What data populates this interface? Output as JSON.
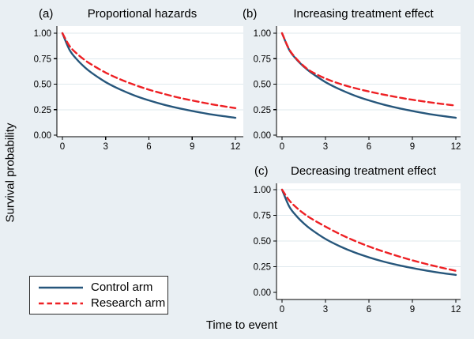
{
  "figure": {
    "ylabel": "Survival probability",
    "xlabel": "Time to event",
    "legend": [
      {
        "name": "Control arm",
        "style": "solid"
      },
      {
        "name": "Research arm",
        "style": "dashed"
      }
    ]
  },
  "colors": {
    "background": "#e9eff3",
    "plot_background": "#ffffff",
    "gridline": "#dfe9ee",
    "axis": "#000000",
    "control_arm": "#26567b",
    "research_arm": "#ee2024"
  },
  "chart_data": [
    {
      "id": "a",
      "type": "line",
      "panel_label": "(a)",
      "title": "Proportional hazards",
      "xlim": [
        0,
        12
      ],
      "ylim": [
        0,
        1
      ],
      "xticks": [
        "0",
        "3",
        "6",
        "9",
        "12"
      ],
      "yticks": [
        "0.00",
        "0.25",
        "0.50",
        "0.75",
        "1.00"
      ],
      "grid": "horizontal",
      "x": [
        0,
        0.5,
        1,
        1.5,
        2,
        3,
        4,
        5,
        6,
        7,
        8,
        9,
        10,
        11,
        12
      ],
      "series": [
        {
          "name": "Control arm",
          "values": [
            1.0,
            0.835,
            0.743,
            0.672,
            0.614,
            0.52,
            0.448,
            0.389,
            0.341,
            0.3,
            0.266,
            0.237,
            0.211,
            0.189,
            0.17
          ]
        },
        {
          "name": "Research arm",
          "values": [
            1.0,
            0.873,
            0.8,
            0.742,
            0.694,
            0.613,
            0.548,
            0.493,
            0.446,
            0.406,
            0.37,
            0.34,
            0.312,
            0.287,
            0.265
          ]
        }
      ]
    },
    {
      "id": "b",
      "type": "line",
      "panel_label": "(b)",
      "title": "Increasing treatment effect",
      "xlim": [
        0,
        12
      ],
      "ylim": [
        0,
        1
      ],
      "xticks": [
        "0",
        "3",
        "6",
        "9",
        "12"
      ],
      "yticks": [
        "0.00",
        "0.25",
        "0.50",
        "0.75",
        "1.00"
      ],
      "grid": "horizontal",
      "x": [
        0,
        0.5,
        1,
        1.5,
        2,
        3,
        4,
        5,
        6,
        7,
        8,
        9,
        10,
        11,
        12
      ],
      "series": [
        {
          "name": "Control arm",
          "values": [
            1.0,
            0.835,
            0.743,
            0.672,
            0.614,
            0.52,
            0.448,
            0.389,
            0.341,
            0.3,
            0.266,
            0.237,
            0.211,
            0.189,
            0.17
          ]
        },
        {
          "name": "Research arm",
          "values": [
            1.0,
            0.84,
            0.748,
            0.678,
            0.625,
            0.555,
            0.503,
            0.462,
            0.428,
            0.398,
            0.371,
            0.347,
            0.326,
            0.307,
            0.29
          ]
        }
      ]
    },
    {
      "id": "c",
      "type": "line",
      "panel_label": "(c)",
      "title": "Decreasing treatment effect",
      "xlim": [
        0,
        12
      ],
      "ylim": [
        0,
        1
      ],
      "xticks": [
        "0",
        "3",
        "6",
        "9",
        "12"
      ],
      "yticks": [
        "0.00",
        "0.25",
        "0.50",
        "0.75",
        "1.00"
      ],
      "grid": "horizontal",
      "x": [
        0,
        0.5,
        1,
        1.5,
        2,
        3,
        4,
        5,
        6,
        7,
        8,
        9,
        10,
        11,
        12
      ],
      "series": [
        {
          "name": "Control arm",
          "values": [
            1.0,
            0.835,
            0.743,
            0.672,
            0.614,
            0.52,
            0.448,
            0.389,
            0.341,
            0.3,
            0.266,
            0.237,
            0.211,
            0.189,
            0.17
          ]
        },
        {
          "name": "Research arm",
          "values": [
            1.0,
            0.895,
            0.825,
            0.768,
            0.72,
            0.64,
            0.567,
            0.503,
            0.447,
            0.398,
            0.353,
            0.312,
            0.275,
            0.241,
            0.21
          ]
        }
      ]
    }
  ]
}
